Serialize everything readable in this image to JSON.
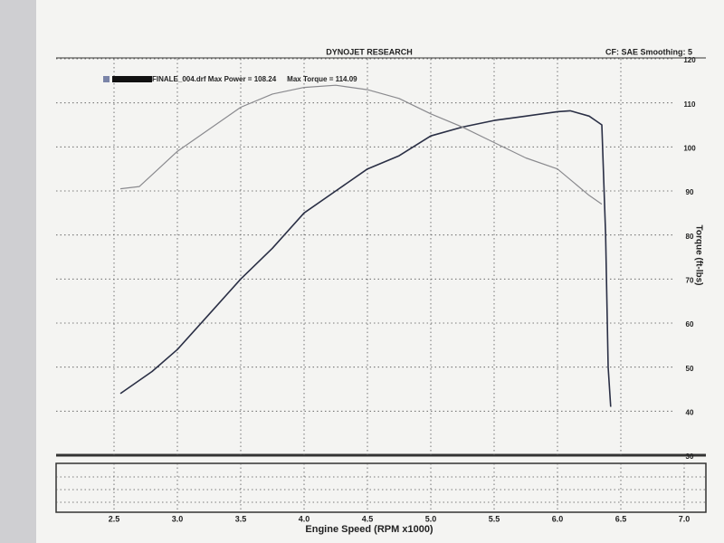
{
  "chart_data": {
    "type": "line",
    "title": "DYNOJET RESEARCH",
    "subtitle": "CF: SAE Smoothing: 5",
    "x_label": "Engine Speed (RPM x1000)",
    "y_label": "Torque (ft-lbs)",
    "xlim": [
      2.0,
      7.0
    ],
    "ylim": [
      30,
      120
    ],
    "xticks": [
      2.5,
      {
        "value": 3,
        "label": "3.0"
      },
      3.5,
      {
        "value": 4,
        "label": "4.0"
      },
      4.5,
      {
        "value": 5,
        "label": "5.0"
      },
      5.5,
      {
        "value": 6,
        "label": "6.0"
      },
      6.5,
      {
        "value": 7,
        "label": "7.0"
      }
    ],
    "yticks": [
      30,
      40,
      50,
      60,
      70,
      80,
      90,
      100,
      110,
      120
    ],
    "grid": true,
    "legend": "top-left",
    "series": [
      {
        "name": "FINALE_004.drf Max Power = 108.24",
        "color": "#2a2f45",
        "x": [
          2.55,
          2.8,
          3.0,
          3.25,
          3.5,
          3.75,
          4.0,
          4.25,
          4.5,
          4.75,
          5.0,
          5.25,
          5.5,
          5.75,
          6.0,
          6.1,
          6.25,
          6.3,
          6.35,
          6.38,
          6.4,
          6.42
        ],
        "values": [
          44,
          49,
          54,
          62,
          70,
          77,
          85,
          90,
          95,
          98,
          102.5,
          104.5,
          106,
          107,
          108,
          108.2,
          107,
          106,
          105,
          80,
          50,
          41
        ]
      },
      {
        "name": "Max Torque = 114.09",
        "color": "#8a8a8e",
        "x": [
          2.55,
          2.7,
          2.85,
          3.0,
          3.25,
          3.5,
          3.75,
          4.0,
          4.25,
          4.5,
          4.75,
          5.0,
          5.25,
          5.5,
          5.75,
          6.0,
          6.25,
          6.35
        ],
        "values": [
          90.5,
          91,
          95,
          99,
          104,
          109,
          112,
          113.5,
          114,
          113,
          111,
          107.5,
          104.5,
          101,
          97.5,
          95,
          89,
          87
        ]
      }
    ]
  }
}
